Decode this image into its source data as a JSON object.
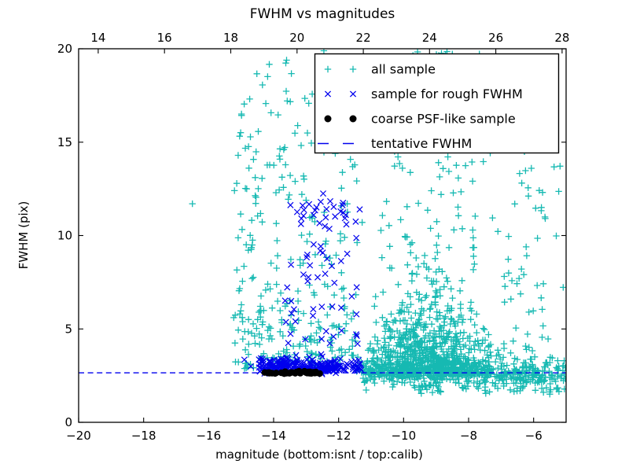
{
  "chart_data": {
    "type": "scatter",
    "title": "FWHM vs magnitudes",
    "axes": {
      "bottom": {
        "label": "magnitude (bottom:isnt / top:calib)",
        "lim": [
          -20,
          -5
        ],
        "ticks": [
          -20,
          -18,
          -16,
          -14,
          -12,
          -10,
          -8,
          -6
        ],
        "tick_labels": [
          "−20",
          "−18",
          "−16",
          "−14",
          "−12",
          "−10",
          "−8",
          "−6"
        ]
      },
      "top": {
        "lim": [
          13.41,
          28.12
        ],
        "ticks": [
          14,
          16,
          18,
          20,
          22,
          24,
          26,
          28
        ],
        "tick_labels": [
          "14",
          "16",
          "18",
          "20",
          "22",
          "24",
          "26",
          "28"
        ]
      },
      "left": {
        "label": "FWHM (pix)",
        "lim": [
          0,
          20
        ],
        "ticks": [
          0,
          5,
          10,
          15,
          20
        ],
        "tick_labels": [
          "0",
          "5",
          "10",
          "15",
          "20"
        ]
      }
    },
    "grid": false,
    "legend_position": "upper right",
    "tentative_fwhm_line": {
      "label": "tentative FWHM",
      "y": 2.65,
      "color": "#0000ee",
      "style": "dashed"
    },
    "series": [
      {
        "name": "all sample",
        "marker": "plus",
        "color": "#16b9b2",
        "marker_half_size": 4.2,
        "stroke_width": 1.3,
        "clusters": [
          {
            "pts": [
              [
                -16.5,
                11.7
              ]
            ]
          },
          {
            "n": 75,
            "x": [
              "u",
              -15.25,
              -13.95
            ],
            "y": [
              "u",
              2.7,
              19.9
            ]
          },
          {
            "n": 45,
            "x": [
              "u",
              -15.25,
              -13.95
            ],
            "y": [
              "hg",
              2.7,
              2.6,
              1
            ]
          },
          {
            "n": 120,
            "x": [
              "u",
              -13.95,
              -11.4
            ],
            "y": [
              "u",
              2.9,
              19.9
            ]
          },
          {
            "n": 85,
            "x": [
              "u",
              -13.95,
              -11.4
            ],
            "y": [
              "hg",
              2.9,
              2.2,
              1
            ]
          },
          {
            "n": 550,
            "x": [
              "g",
              -9.4,
              0.85
            ],
            "y": [
              "e",
              2.55,
              1.7
            ],
            "xclip": [
              -11.45,
              -6.3
            ],
            "yclip": [
              2.3,
              14.5
            ]
          },
          {
            "n": 340,
            "x": [
              "t",
              -11.3,
              -6.5
            ],
            "y": [
              "e",
              2.4,
              1.1
            ],
            "yclip": [
              1.9,
              12
            ]
          },
          {
            "n": 110,
            "x": [
              "t",
              -12.2,
              -5.4
            ],
            "y": [
              "u",
              8,
              19.9
            ]
          },
          {
            "n": 430,
            "x": [
              "u",
              -11.3,
              -5.02
            ],
            "y": [
              "g",
              2.62,
              0.34
            ],
            "yclip": [
              1.55,
              3.6
            ]
          },
          {
            "n": 55,
            "x": [
              "u",
              -9.6,
              -5.05
            ],
            "y": [
              "u",
              1.5,
              2.25
            ]
          },
          {
            "n": 50,
            "x": [
              "u",
              -6.95,
              -5.05
            ],
            "y": [
              "u",
              3,
              14
            ]
          },
          {
            "n": 7,
            "x": [
              "u",
              -9.35,
              -8.45
            ],
            "y": [
              "u",
              19.5,
              19.95
            ]
          }
        ]
      },
      {
        "name": "sample for rough FWHM",
        "marker": "x",
        "color": "#0000ee",
        "marker_half_size": 3.6,
        "stroke_width": 1.2,
        "clusters": [
          {
            "n": 185,
            "x": [
              "u",
              -14.45,
              -11.3
            ],
            "y": [
              "hg",
              2.72,
              0.3,
              1
            ],
            "yclip": [
              2.6,
              4.3
            ]
          },
          {
            "n": 65,
            "x": [
              "u",
              -14.4,
              -12.0
            ],
            "y": [
              "g",
              3.05,
              0.2
            ]
          },
          {
            "n": 45,
            "x": [
              "u",
              -13.65,
              -11.35
            ],
            "y": [
              "u",
              4.2,
              10.2
            ]
          },
          {
            "n": 30,
            "x": [
              "u",
              -13.6,
              -11.3
            ],
            "y": [
              "g",
              11.3,
              0.5
            ],
            "yclip": [
              10.3,
              12.3
            ]
          },
          {
            "pts": [
              [
                -14.9,
                3.35
              ],
              [
                -14.7,
                3.0
              ]
            ]
          }
        ]
      },
      {
        "name": "coarse PSF-like sample",
        "marker": "dot",
        "color": "#000000",
        "dot_radius": 4.2,
        "clusters": [
          {
            "n": 42,
            "x": [
              "u",
              -14.32,
              -12.5
            ],
            "y": [
              "g",
              2.66,
              0.035
            ]
          }
        ]
      }
    ],
    "seed": 1337
  },
  "legend": {
    "entries": [
      {
        "label": "all sample",
        "marker": "plus",
        "color": "#16b9b2"
      },
      {
        "label": "sample for rough FWHM",
        "marker": "x",
        "color": "#0000ee"
      },
      {
        "label": "coarse PSF-like sample",
        "marker": "dot",
        "color": "#000000"
      },
      {
        "label": "tentative FWHM",
        "marker": "dashed-line",
        "color": "#0000ee"
      }
    ]
  }
}
